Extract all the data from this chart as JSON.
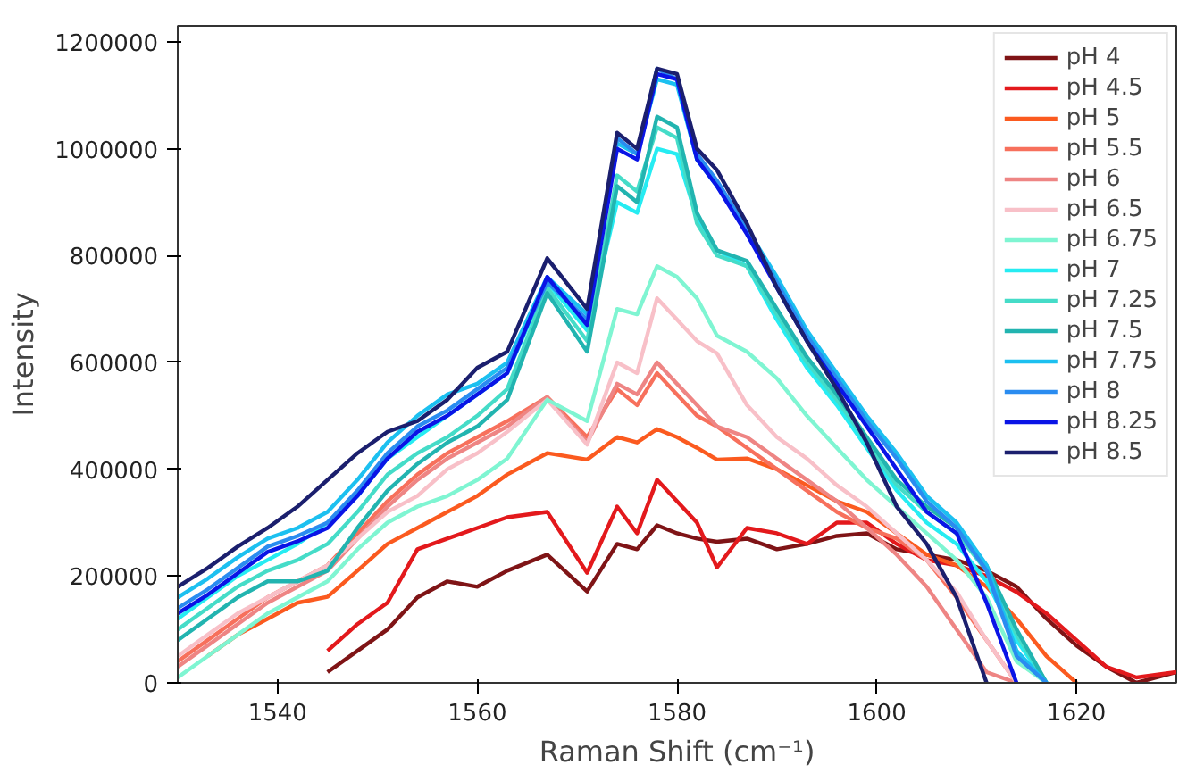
{
  "chart_data": {
    "type": "line",
    "xlabel": "Raman Shift (cm⁻¹)",
    "ylabel": "Intensity",
    "x": [
      1530,
      1533,
      1536,
      1539,
      1542,
      1545,
      1548,
      1551,
      1554,
      1557,
      1560,
      1563,
      1567,
      1571,
      1574,
      1576,
      1578,
      1580,
      1582,
      1584,
      1587,
      1590,
      1593,
      1596,
      1599,
      1602,
      1605,
      1608,
      1611,
      1614,
      1617,
      1620,
      1623,
      1626,
      1630
    ],
    "xlim": [
      1530,
      1630
    ],
    "xticks": [
      1540,
      1560,
      1580,
      1600,
      1620
    ],
    "ylim": [
      0,
      1230000
    ],
    "yticks": [
      0,
      200000,
      400000,
      600000,
      800000,
      1000000,
      1200000
    ],
    "grid": false,
    "legend": "top right",
    "marker": "none",
    "line_style": "solid",
    "series": [
      {
        "name": "pH 4",
        "color": "#7f1416",
        "values": [
          null,
          null,
          null,
          null,
          null,
          20000,
          60000,
          100000,
          160000,
          190000,
          180000,
          210000,
          240000,
          171000,
          260000,
          250000,
          295000,
          280000,
          270000,
          264000,
          270000,
          250000,
          260000,
          275000,
          280000,
          250000,
          240000,
          230000,
          210000,
          180000,
          120000,
          70000,
          30000,
          0,
          20000
        ]
      },
      {
        "name": "pH 4.5",
        "color": "#e3191c",
        "values": [
          null,
          null,
          null,
          null,
          null,
          60000,
          110000,
          150000,
          250000,
          270000,
          290000,
          310000,
          320000,
          206000,
          330000,
          280000,
          380000,
          340000,
          300000,
          216000,
          290000,
          280000,
          260000,
          300000,
          300000,
          260000,
          230000,
          220000,
          200000,
          170000,
          130000,
          80000,
          30000,
          10000,
          20000
        ]
      },
      {
        "name": "pH 5",
        "color": "#fb5a1f",
        "values": [
          null,
          50000,
          90000,
          120000,
          150000,
          161000,
          210000,
          260000,
          290000,
          320000,
          350000,
          390000,
          430000,
          418000,
          460000,
          450000,
          475000,
          460000,
          440000,
          418000,
          420000,
          400000,
          370000,
          340000,
          320000,
          280000,
          240000,
          220000,
          180000,
          120000,
          50000,
          0,
          null,
          null,
          null
        ]
      },
      {
        "name": "pH 5.5",
        "color": "#f7705c",
        "values": [
          40000,
          80000,
          120000,
          160000,
          190000,
          220000,
          280000,
          340000,
          390000,
          430000,
          460000,
          490000,
          535000,
          460000,
          550000,
          520000,
          580000,
          540000,
          500000,
          480000,
          440000,
          400000,
          360000,
          320000,
          290000,
          270000,
          230000,
          160000,
          80000,
          0,
          null,
          null,
          null,
          null,
          null
        ]
      },
      {
        "name": "pH 6",
        "color": "#ee8584",
        "values": [
          30000,
          70000,
          110000,
          150000,
          180000,
          210000,
          270000,
          330000,
          380000,
          420000,
          450000,
          480000,
          535000,
          450000,
          560000,
          540000,
          600000,
          560000,
          520000,
          480000,
          460000,
          420000,
          380000,
          340000,
          290000,
          240000,
          180000,
          100000,
          20000,
          0,
          null,
          null,
          null,
          null,
          null
        ]
      },
      {
        "name": "pH 6.5",
        "color": "#f8c0c8",
        "values": [
          50000,
          90000,
          130000,
          160000,
          190000,
          220000,
          270000,
          320000,
          350000,
          400000,
          430000,
          470000,
          530000,
          446000,
          600000,
          580000,
          720000,
          680000,
          640000,
          617000,
          520000,
          460000,
          420000,
          370000,
          330000,
          280000,
          230000,
          170000,
          80000,
          0,
          null,
          null,
          null,
          null,
          null
        ]
      },
      {
        "name": "pH 6.75",
        "color": "#7ff5d2",
        "values": [
          10000,
          50000,
          90000,
          130000,
          160000,
          190000,
          250000,
          300000,
          330000,
          350000,
          380000,
          420000,
          530000,
          490000,
          700000,
          690000,
          780000,
          760000,
          720000,
          650000,
          620000,
          570000,
          500000,
          440000,
          380000,
          330000,
          280000,
          230000,
          160000,
          40000,
          0,
          null,
          null,
          null,
          null
        ]
      },
      {
        "name": "pH 7",
        "color": "#26ecf2",
        "values": [
          120000,
          160000,
          200000,
          230000,
          260000,
          300000,
          350000,
          420000,
          460000,
          500000,
          540000,
          580000,
          750000,
          660000,
          900000,
          880000,
          1000000,
          990000,
          870000,
          810000,
          780000,
          680000,
          590000,
          520000,
          440000,
          360000,
          300000,
          260000,
          190000,
          80000,
          0,
          null,
          null,
          null,
          null
        ]
      },
      {
        "name": "pH 7.25",
        "color": "#45dcc8",
        "values": [
          100000,
          140000,
          180000,
          210000,
          230000,
          260000,
          320000,
          390000,
          430000,
          460000,
          500000,
          550000,
          740000,
          640000,
          950000,
          920000,
          1040000,
          1020000,
          860000,
          800000,
          780000,
          690000,
          600000,
          530000,
          450000,
          370000,
          320000,
          280000,
          210000,
          90000,
          0,
          null,
          null,
          null,
          null
        ]
      },
      {
        "name": "pH 7.5",
        "color": "#22b4b0",
        "values": [
          80000,
          120000,
          160000,
          190000,
          190000,
          210000,
          290000,
          360000,
          410000,
          450000,
          480000,
          530000,
          730000,
          620000,
          930000,
          900000,
          1060000,
          1040000,
          880000,
          810000,
          790000,
          700000,
          610000,
          540000,
          460000,
          380000,
          330000,
          290000,
          220000,
          100000,
          0,
          null,
          null,
          null,
          null
        ]
      },
      {
        "name": "pH 7.75",
        "color": "#1cc0f0",
        "values": [
          160000,
          195000,
          235000,
          270000,
          290000,
          320000,
          380000,
          450000,
          500000,
          540000,
          560000,
          600000,
          760000,
          690000,
          1010000,
          990000,
          1130000,
          1120000,
          980000,
          930000,
          850000,
          760000,
          660000,
          580000,
          500000,
          430000,
          350000,
          300000,
          220000,
          60000,
          0,
          null,
          null,
          null,
          null
        ]
      },
      {
        "name": "pH 8",
        "color": "#2a8cf0",
        "values": [
          140000,
          175000,
          215000,
          255000,
          275000,
          300000,
          360000,
          430000,
          480000,
          510000,
          550000,
          590000,
          750000,
          680000,
          1020000,
          990000,
          1150000,
          1130000,
          990000,
          940000,
          850000,
          750000,
          650000,
          570000,
          490000,
          420000,
          340000,
          290000,
          210000,
          50000,
          0,
          null,
          null,
          null,
          null
        ]
      },
      {
        "name": "pH 8.25",
        "color": "#0a14e6",
        "values": [
          130000,
          165000,
          205000,
          245000,
          265000,
          290000,
          350000,
          420000,
          470000,
          500000,
          540000,
          580000,
          760000,
          670000,
          1000000,
          980000,
          1140000,
          1130000,
          980000,
          930000,
          840000,
          740000,
          640000,
          560000,
          480000,
          400000,
          320000,
          280000,
          150000,
          0,
          null,
          null,
          null,
          null,
          null
        ]
      },
      {
        "name": "pH 8.5",
        "color": "#1b1f6e",
        "values": [
          180000,
          215000,
          255000,
          290000,
          330000,
          380000,
          430000,
          470000,
          490000,
          530000,
          590000,
          620000,
          795000,
          700000,
          1030000,
          1000000,
          1150000,
          1140000,
          1000000,
          960000,
          860000,
          740000,
          640000,
          550000,
          450000,
          330000,
          260000,
          160000,
          0,
          null,
          null,
          null,
          null,
          null,
          null
        ]
      }
    ]
  }
}
